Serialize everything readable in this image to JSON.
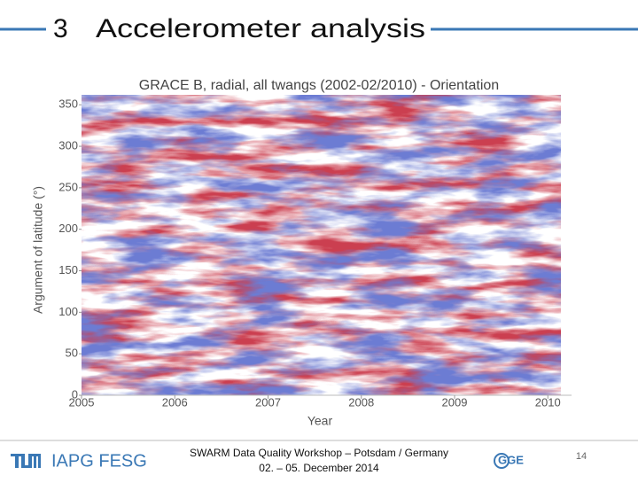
{
  "header": {
    "number": "3",
    "title": "Accelerometer analysis"
  },
  "chart_data": {
    "type": "scatter",
    "title": "GRACE B, radial, all twangs (2002-02/2010) - Orientation",
    "x_label": "Year",
    "y_label": "Argument of latitude (°)",
    "xlim": [
      2005,
      2010.14
    ],
    "xticks": [
      2005,
      2006,
      2007,
      2008,
      2009,
      2010
    ],
    "ylim": [
      0,
      362
    ],
    "yticks": [
      0,
      50,
      100,
      150,
      200,
      250,
      300,
      350
    ]
  },
  "footer": {
    "logo_left": "IAPG FESG",
    "event": "SWARM Data Quality Workshop – Potsdam / Germany",
    "dates": "02. – 05. December 2014",
    "logo_right": "GGE",
    "page": "14"
  }
}
